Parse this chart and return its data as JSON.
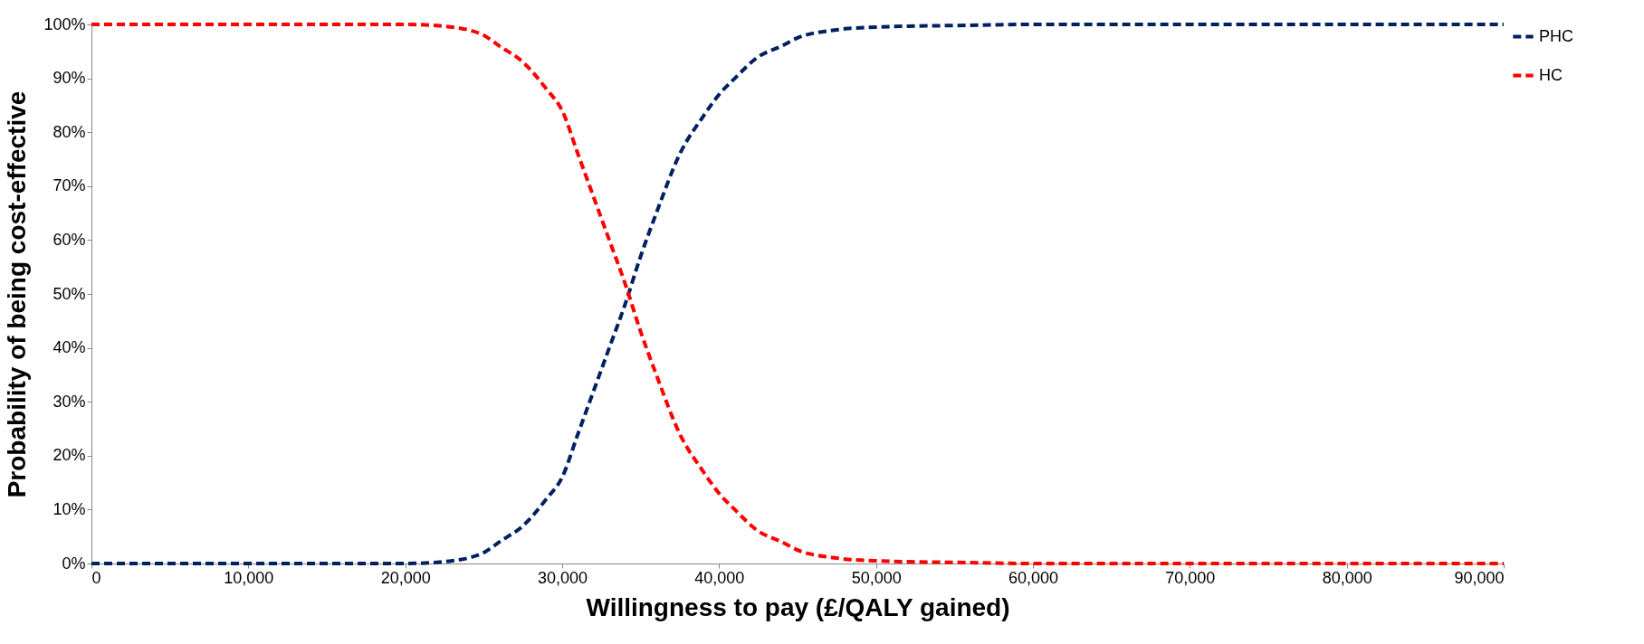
{
  "chart_data": {
    "type": "line",
    "xlabel": "Willingness to pay (£/QALY gained)",
    "ylabel": "Probability of being cost-effective",
    "x": [
      0,
      5000,
      10000,
      15000,
      20000,
      22000,
      23000,
      24000,
      25000,
      26000,
      27500,
      29000,
      30000,
      31000,
      32000,
      33000,
      34000,
      35000,
      36000,
      37500,
      39000,
      40000,
      41000,
      42500,
      44000,
      45000,
      47500,
      50000,
      52500,
      55000,
      60000,
      70000,
      80000,
      90000
    ],
    "series": [
      {
        "name": "PHC",
        "color": "#002060",
        "values": [
          0,
          0,
          0,
          0,
          0,
          0.2,
          0.5,
          1,
          2,
          4,
          7,
          12,
          16,
          24,
          32,
          40,
          48,
          57,
          65,
          76,
          83,
          87,
          90,
          94,
          96,
          97.5,
          99,
          99.5,
          99.7,
          99.8,
          100,
          100,
          100,
          100
        ]
      },
      {
        "name": "HC",
        "color": "#ff0000",
        "values": [
          100,
          100,
          100,
          100,
          100,
          99.8,
          99.5,
          99,
          98,
          96,
          93,
          88,
          84,
          76,
          68,
          60,
          52,
          43,
          35,
          24,
          17,
          13,
          10,
          6,
          4,
          2.5,
          1,
          0.5,
          0.3,
          0.2,
          0,
          0,
          0,
          0
        ]
      }
    ],
    "xlim": [
      0,
      90000
    ],
    "ylim": [
      0,
      100
    ],
    "xticks": [
      0,
      {
        "value": 10000,
        "label": "10,000"
      },
      {
        "value": 20000,
        "label": "20,000"
      },
      {
        "value": 30000,
        "label": "30,000"
      },
      {
        "value": 40000,
        "label": "40,000"
      },
      {
        "value": 50000,
        "label": "50,000"
      },
      {
        "value": 60000,
        "label": "60,000"
      },
      {
        "value": 70000,
        "label": "70,000"
      },
      {
        "value": 80000,
        "label": "80,000"
      },
      {
        "value": 90000,
        "label": "90,000"
      }
    ],
    "yticks": [
      {
        "value": 0,
        "label": "0%"
      },
      {
        "value": 10,
        "label": "10%"
      },
      {
        "value": 20,
        "label": "20%"
      },
      {
        "value": 30,
        "label": "30%"
      },
      {
        "value": 40,
        "label": "40%"
      },
      {
        "value": 50,
        "label": "50%"
      },
      {
        "value": 60,
        "label": "60%"
      },
      {
        "value": 70,
        "label": "70%"
      },
      {
        "value": 80,
        "label": "80%"
      },
      {
        "value": 90,
        "label": "90%"
      },
      {
        "value": 100,
        "label": "100%"
      }
    ],
    "legend": "right",
    "line_style": "dashed",
    "marker": "none"
  }
}
